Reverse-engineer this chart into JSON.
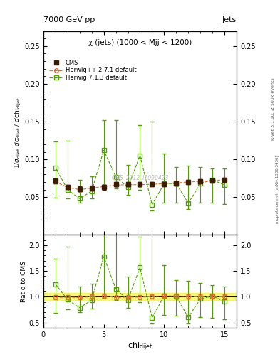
{
  "title_top": "7000 GeV pp",
  "title_right": "Jets",
  "plot_title": "χ (jets) (1000 < Mjj < 1200)",
  "watermark": "CMS_2012_I1090423",
  "rivet_label": "Rivet 3.1.10, ≥ 500k events",
  "arxiv_label": "mcplots.cern.ch [arXiv:1306.3436]",
  "xlabel": "chi",
  "xlabel_sub": "dijet",
  "ylabel": "1/σ_{dijet} dσ_{dijet} / dchi_{dijet}",
  "ylabel_ratio": "Ratio to CMS",
  "xlim": [
    0,
    16
  ],
  "ylim_main": [
    0.0,
    0.27
  ],
  "ylim_ratio": [
    0.4,
    2.2
  ],
  "yticks_main": [
    0.05,
    0.1,
    0.15,
    0.2,
    0.25
  ],
  "yticks_ratio": [
    0.5,
    1.0,
    1.5,
    2.0
  ],
  "xticks": [
    0,
    5,
    10,
    15
  ],
  "cms_x": [
    1,
    2,
    3,
    4,
    5,
    6,
    7,
    8,
    9,
    10,
    11,
    12,
    13,
    14,
    15
  ],
  "cms_y": [
    0.0715,
    0.0635,
    0.061,
    0.062,
    0.063,
    0.067,
    0.067,
    0.067,
    0.067,
    0.067,
    0.068,
    0.07,
    0.071,
    0.072,
    0.073
  ],
  "cms_yerr": [
    0.003,
    0.003,
    0.003,
    0.003,
    0.003,
    0.003,
    0.003,
    0.003,
    0.003,
    0.003,
    0.003,
    0.003,
    0.003,
    0.003,
    0.003
  ],
  "herwigpp_x": [
    1,
    2,
    3,
    4,
    5,
    6,
    7,
    8,
    9,
    10,
    11,
    12,
    13,
    14,
    15
  ],
  "herwigpp_y": [
    0.0705,
    0.063,
    0.06,
    0.062,
    0.064,
    0.066,
    0.0665,
    0.0665,
    0.067,
    0.068,
    0.069,
    0.07,
    0.071,
    0.072,
    0.073
  ],
  "herwigpp_yerr": [
    0.002,
    0.002,
    0.002,
    0.002,
    0.002,
    0.002,
    0.002,
    0.002,
    0.002,
    0.002,
    0.002,
    0.002,
    0.002,
    0.002,
    0.002
  ],
  "herwig713_x": [
    1,
    2,
    3,
    4,
    5,
    6,
    7,
    8,
    9,
    10,
    11,
    12,
    13,
    14,
    15
  ],
  "herwig713_y": [
    0.089,
    0.06,
    0.048,
    0.058,
    0.112,
    0.077,
    0.063,
    0.105,
    0.04,
    0.068,
    0.068,
    0.042,
    0.068,
    0.073,
    0.066
  ],
  "herwig713_yerr_lo": [
    0.04,
    0.012,
    0.005,
    0.01,
    0.05,
    0.015,
    0.01,
    0.045,
    0.008,
    0.025,
    0.025,
    0.008,
    0.025,
    0.03,
    0.025
  ],
  "herwig713_yerr_hi": [
    0.035,
    0.065,
    0.025,
    0.02,
    0.04,
    0.075,
    0.03,
    0.04,
    0.11,
    0.04,
    0.022,
    0.05,
    0.022,
    0.015,
    0.022
  ],
  "herwigpp_ratio_y": [
    0.987,
    0.992,
    0.984,
    1.0,
    1.016,
    0.985,
    0.993,
    0.993,
    1.0,
    1.015,
    1.015,
    1.0,
    1.0,
    1.0,
    1.0
  ],
  "herwigpp_ratio_yerr": [
    0.04,
    0.04,
    0.04,
    0.04,
    0.04,
    0.04,
    0.04,
    0.04,
    0.04,
    0.04,
    0.04,
    0.04,
    0.04,
    0.04,
    0.04
  ],
  "herwig713_ratio_y": [
    1.245,
    0.945,
    0.787,
    0.935,
    1.778,
    1.149,
    0.94,
    1.567,
    0.597,
    1.015,
    1.0,
    0.6,
    0.957,
    1.014,
    0.904
  ],
  "herwig713_ratio_yerr_lo": [
    0.56,
    0.19,
    0.08,
    0.16,
    0.79,
    0.22,
    0.15,
    0.67,
    0.12,
    0.37,
    0.37,
    0.12,
    0.35,
    0.42,
    0.34
  ],
  "herwig713_ratio_yerr_hi": [
    0.49,
    1.02,
    0.41,
    0.32,
    0.63,
    1.12,
    0.45,
    0.6,
    1.64,
    0.6,
    0.32,
    0.71,
    0.31,
    0.21,
    0.3
  ],
  "cms_color": "#3d1c02",
  "herwigpp_color": "#e07030",
  "herwig713_color": "#50a000",
  "cms_band_color": "#f0f000",
  "cms_band_alpha": 0.5,
  "background_color": "#ffffff"
}
